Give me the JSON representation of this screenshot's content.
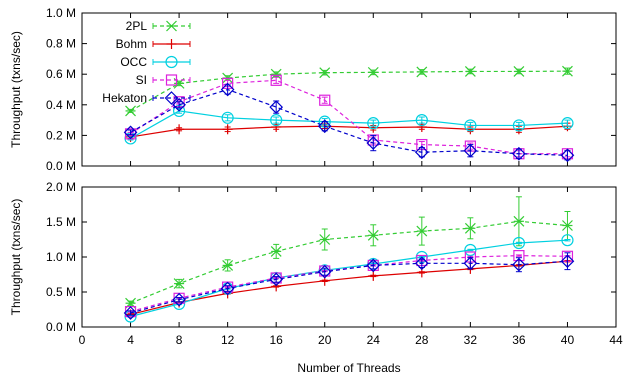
{
  "chart_data": [
    {
      "type": "line",
      "ylabel": "Throughput (txns/sec)",
      "xlabel": "",
      "x": [
        4,
        8,
        12,
        16,
        20,
        24,
        28,
        32,
        36,
        40
      ],
      "xlim": [
        0,
        44
      ],
      "xticks": [
        "0",
        "4",
        "8",
        "12",
        "16",
        "20",
        "24",
        "28",
        "32",
        "36",
        "40",
        "44"
      ],
      "ylim": [
        0,
        1000000
      ],
      "yticks": [
        "0.0 M",
        "0.2 M",
        "0.4 M",
        "0.6 M",
        "0.8 M",
        "1.0 M"
      ],
      "legend_position": "top-left",
      "series": [
        {
          "name": "2PL",
          "color": "#33cc33",
          "marker": "x-star",
          "dash": true,
          "values": [
            360000,
            540000,
            575000,
            600000,
            610000,
            612000,
            615000,
            618000,
            618000,
            620000
          ],
          "errors": [
            10000,
            15000,
            15000,
            15000,
            15000,
            15000,
            15000,
            15000,
            15000,
            20000
          ]
        },
        {
          "name": "Bohm",
          "color": "#dd0000",
          "marker": "plus",
          "dash": false,
          "values": [
            190000,
            240000,
            240000,
            255000,
            260000,
            250000,
            255000,
            240000,
            240000,
            260000
          ],
          "errors": [
            10000,
            10000,
            15000,
            15000,
            15000,
            15000,
            15000,
            15000,
            20000,
            20000
          ]
        },
        {
          "name": "OCC",
          "color": "#00d0e0",
          "marker": "circle",
          "dash": false,
          "values": [
            180000,
            360000,
            315000,
            300000,
            290000,
            280000,
            300000,
            265000,
            265000,
            280000
          ],
          "errors": [
            10000,
            15000,
            20000,
            20000,
            20000,
            20000,
            20000,
            20000,
            20000,
            20000
          ]
        },
        {
          "name": "SI",
          "color": "#dd22dd",
          "marker": "square",
          "dash": true,
          "values": [
            210000,
            420000,
            540000,
            560000,
            430000,
            170000,
            140000,
            130000,
            80000,
            80000
          ],
          "errors": [
            10000,
            15000,
            20000,
            20000,
            20000,
            20000,
            20000,
            20000,
            20000,
            20000
          ]
        },
        {
          "name": "Hekaton",
          "color": "#0000cc",
          "marker": "diamond",
          "dash": true,
          "values": [
            220000,
            400000,
            500000,
            385000,
            260000,
            150000,
            90000,
            100000,
            80000,
            70000
          ],
          "errors": [
            15000,
            20000,
            30000,
            40000,
            30000,
            50000,
            30000,
            40000,
            30000,
            30000
          ]
        }
      ]
    },
    {
      "type": "line",
      "ylabel": "Throughput (txns/sec)",
      "xlabel": "Number of Threads",
      "x": [
        4,
        8,
        12,
        16,
        20,
        24,
        28,
        32,
        36,
        40
      ],
      "xlim": [
        0,
        44
      ],
      "xticks": [
        "0",
        "4",
        "8",
        "12",
        "16",
        "20",
        "24",
        "28",
        "32",
        "36",
        "40",
        "44"
      ],
      "ylim": [
        0,
        2000000
      ],
      "yticks": [
        "0.0 M",
        "0.5 M",
        "1.0 M",
        "1.5 M",
        "2.0 M"
      ],
      "series": [
        {
          "name": "2PL",
          "color": "#33cc33",
          "marker": "x-star",
          "dash": true,
          "values": [
            340000,
            620000,
            880000,
            1080000,
            1250000,
            1310000,
            1370000,
            1410000,
            1510000,
            1450000
          ],
          "errors": [
            30000,
            60000,
            80000,
            100000,
            150000,
            150000,
            200000,
            150000,
            350000,
            200000
          ]
        },
        {
          "name": "Bohm",
          "color": "#dd0000",
          "marker": "plus",
          "dash": false,
          "values": [
            180000,
            350000,
            480000,
            580000,
            660000,
            730000,
            780000,
            830000,
            880000,
            940000
          ],
          "errors": [
            10000,
            10000,
            10000,
            10000,
            10000,
            10000,
            10000,
            10000,
            10000,
            10000
          ]
        },
        {
          "name": "OCC",
          "color": "#00d0e0",
          "marker": "circle",
          "dash": false,
          "values": [
            150000,
            330000,
            550000,
            700000,
            810000,
            900000,
            1000000,
            1100000,
            1200000,
            1240000
          ],
          "errors": [
            10000,
            10000,
            10000,
            10000,
            10000,
            10000,
            10000,
            10000,
            10000,
            10000
          ]
        },
        {
          "name": "SI",
          "color": "#dd22dd",
          "marker": "square",
          "dash": true,
          "values": [
            220000,
            410000,
            570000,
            700000,
            800000,
            880000,
            950000,
            1000000,
            1020000,
            1010000
          ],
          "errors": [
            10000,
            10000,
            10000,
            10000,
            10000,
            10000,
            10000,
            10000,
            10000,
            10000
          ]
        },
        {
          "name": "Hekaton",
          "color": "#0000cc",
          "marker": "diamond",
          "dash": true,
          "values": [
            200000,
            390000,
            550000,
            680000,
            790000,
            880000,
            910000,
            910000,
            890000,
            940000
          ],
          "errors": [
            30000,
            30000,
            40000,
            40000,
            50000,
            50000,
            60000,
            80000,
            100000,
            120000
          ]
        }
      ]
    }
  ]
}
